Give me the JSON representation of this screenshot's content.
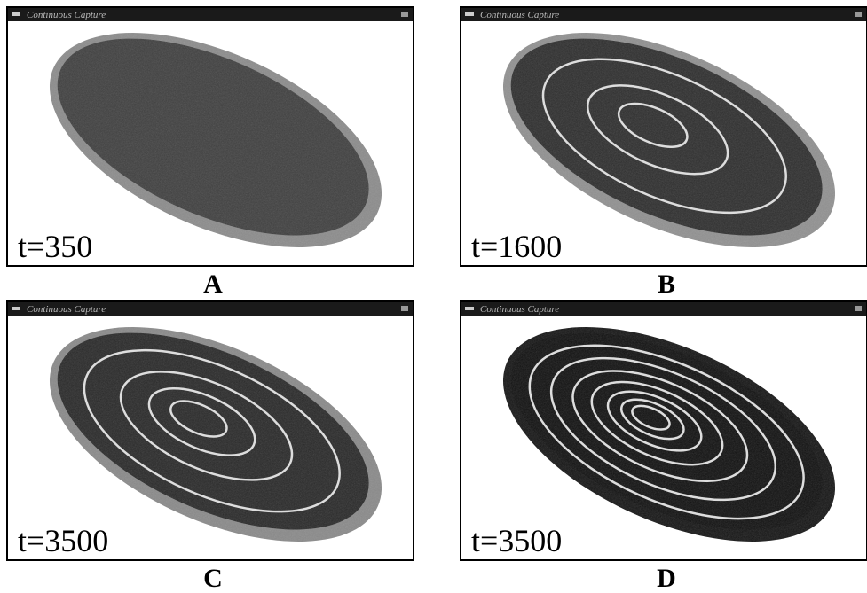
{
  "panels": [
    {
      "window_title": "Continuous Capture",
      "time_label": "t=350",
      "letter": "A"
    },
    {
      "window_title": "Continuous Capture",
      "time_label": "t=1600",
      "letter": "B"
    },
    {
      "window_title": "Continuous Capture",
      "time_label": "t=3500",
      "letter": "C"
    },
    {
      "window_title": "Continuous Capture",
      "time_label": "t=3500",
      "letter": "D"
    }
  ]
}
